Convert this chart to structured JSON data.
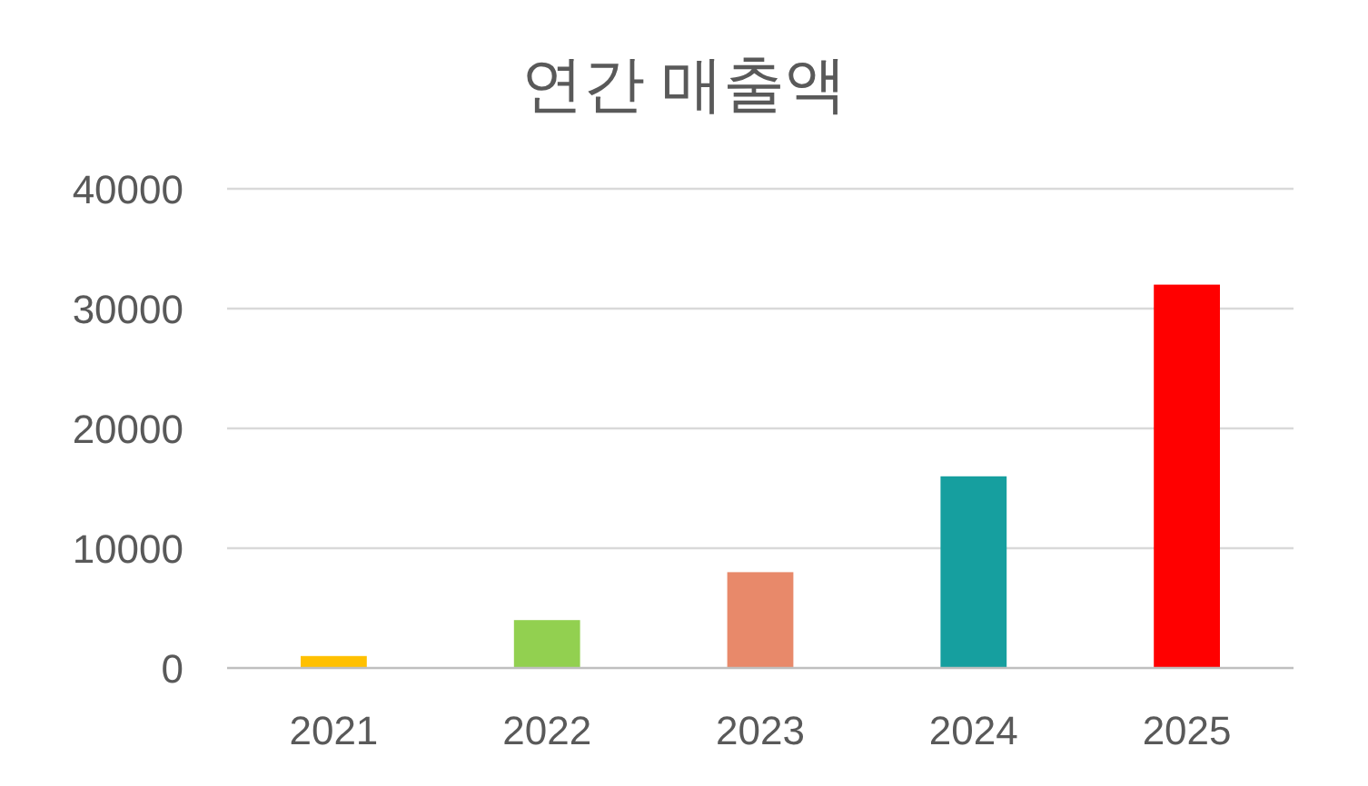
{
  "chart_data": {
    "type": "bar",
    "title": "연간 매출액",
    "categories": [
      "2021",
      "2022",
      "2023",
      "2024",
      "2025"
    ],
    "values": [
      1000,
      4000,
      8000,
      16000,
      32000
    ],
    "colors": [
      "#ffc000",
      "#92d050",
      "#e8896a",
      "#169f9f",
      "#ff0000"
    ],
    "ylim": [
      0,
      40000
    ],
    "yticks": [
      0,
      10000,
      20000,
      30000,
      40000
    ],
    "grid": "y"
  }
}
